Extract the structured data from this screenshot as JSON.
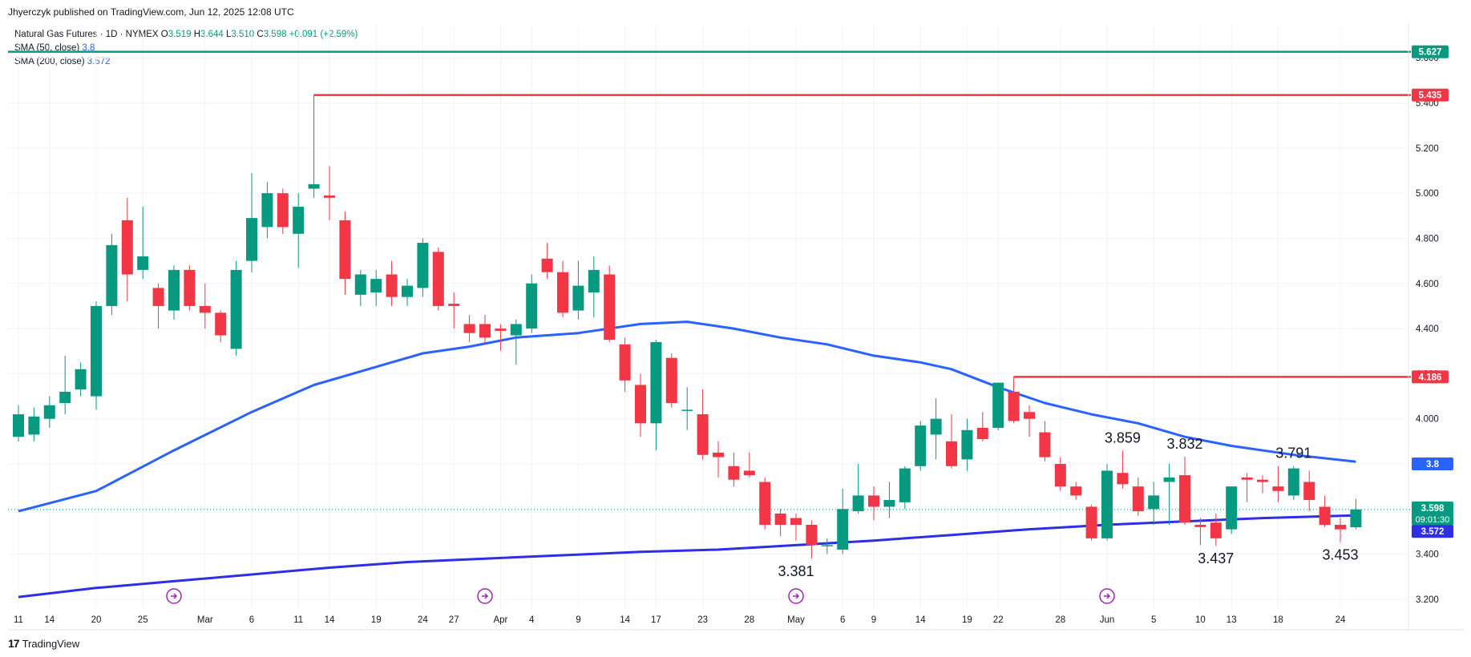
{
  "header": {
    "publisher": "Jhyerczyk published on TradingView.com, Jun 12, 2025 12:08 UTC"
  },
  "legend": {
    "title": "Natural Gas Futures · 1D · NYMEX",
    "o_label": "O",
    "o_value": "3.519",
    "h_label": "H",
    "h_value": "3.644",
    "l_label": "L",
    "l_value": "3.510",
    "c_label": "C",
    "c_value": "3.598",
    "change": "+0.091 (+2.59%)",
    "sma50_label": "SMA (50, close)",
    "sma50_value": "3.8",
    "sma200_label": "SMA (200, close)",
    "sma200_value": "3.572"
  },
  "footer": {
    "logo_text": "TradingView"
  },
  "colors": {
    "up": "#089981",
    "down": "#f23645",
    "sma": "#2962ff",
    "sma200": "#2e2ee6",
    "resistance": "#f23645",
    "top_line": "#089981",
    "grid": "#f0f3fa",
    "axis_text": "#131722"
  },
  "chart_data": {
    "type": "candlestick",
    "ylim": [
      3.15,
      5.75
    ],
    "y_ticks": [
      "3.200",
      "3.400",
      "3.600",
      "3.800",
      "4.000",
      "4.200",
      "4.400",
      "4.600",
      "4.800",
      "5.000",
      "5.200",
      "5.400",
      "5.600"
    ],
    "x_ticks": [
      "11",
      "14",
      "20",
      "25",
      "Mar",
      "6",
      "11",
      "14",
      "19",
      "24",
      "27",
      "Apr",
      "4",
      "9",
      "14",
      "17",
      "23",
      "28",
      "May",
      "6",
      "9",
      "14",
      "19",
      "22",
      "28",
      "Jun",
      "5",
      "10",
      "13",
      "18",
      "24"
    ],
    "x_tick_index": [
      0,
      2,
      5,
      8,
      12,
      15,
      18,
      20,
      23,
      26,
      28,
      31,
      33,
      36,
      39,
      41,
      44,
      47,
      50,
      53,
      55,
      58,
      61,
      63,
      67,
      70,
      73,
      76,
      78,
      81,
      85
    ],
    "candles": [
      {
        "o": 3.92,
        "h": 4.06,
        "l": 3.9,
        "c": 4.02
      },
      {
        "o": 3.93,
        "h": 4.05,
        "l": 3.9,
        "c": 4.01
      },
      {
        "o": 4.0,
        "h": 4.1,
        "l": 3.96,
        "c": 4.06
      },
      {
        "o": 4.07,
        "h": 4.28,
        "l": 4.02,
        "c": 4.12
      },
      {
        "o": 4.13,
        "h": 4.25,
        "l": 4.1,
        "c": 4.22
      },
      {
        "o": 4.1,
        "h": 4.52,
        "l": 4.04,
        "c": 4.5
      },
      {
        "o": 4.5,
        "h": 4.82,
        "l": 4.46,
        "c": 4.77
      },
      {
        "o": 4.88,
        "h": 4.98,
        "l": 4.52,
        "c": 4.64
      },
      {
        "o": 4.66,
        "h": 4.94,
        "l": 4.62,
        "c": 4.72
      },
      {
        "o": 4.58,
        "h": 4.6,
        "l": 4.4,
        "c": 4.5
      },
      {
        "o": 4.48,
        "h": 4.68,
        "l": 4.44,
        "c": 4.66
      },
      {
        "o": 4.66,
        "h": 4.68,
        "l": 4.48,
        "c": 4.5
      },
      {
        "o": 4.5,
        "h": 4.6,
        "l": 4.4,
        "c": 4.47
      },
      {
        "o": 4.47,
        "h": 4.48,
        "l": 4.34,
        "c": 4.37
      },
      {
        "o": 4.31,
        "h": 4.7,
        "l": 4.28,
        "c": 4.66
      },
      {
        "o": 4.7,
        "h": 5.09,
        "l": 4.65,
        "c": 4.89
      },
      {
        "o": 4.85,
        "h": 5.05,
        "l": 4.8,
        "c": 5.0
      },
      {
        "o": 5.0,
        "h": 5.02,
        "l": 4.82,
        "c": 4.85
      },
      {
        "o": 4.82,
        "h": 5.0,
        "l": 4.67,
        "c": 4.94
      },
      {
        "o": 5.02,
        "h": 5.435,
        "l": 4.98,
        "c": 5.04
      },
      {
        "o": 4.99,
        "h": 5.12,
        "l": 4.88,
        "c": 4.98
      },
      {
        "o": 4.88,
        "h": 4.92,
        "l": 4.55,
        "c": 4.62
      },
      {
        "o": 4.55,
        "h": 4.66,
        "l": 4.5,
        "c": 4.64
      },
      {
        "o": 4.56,
        "h": 4.66,
        "l": 4.5,
        "c": 4.62
      },
      {
        "o": 4.64,
        "h": 4.7,
        "l": 4.5,
        "c": 4.54
      },
      {
        "o": 4.54,
        "h": 4.62,
        "l": 4.5,
        "c": 4.59
      },
      {
        "o": 4.58,
        "h": 4.8,
        "l": 4.54,
        "c": 4.78
      },
      {
        "o": 4.74,
        "h": 4.76,
        "l": 4.48,
        "c": 4.5
      },
      {
        "o": 4.51,
        "h": 4.56,
        "l": 4.4,
        "c": 4.5
      },
      {
        "o": 4.42,
        "h": 4.46,
        "l": 4.34,
        "c": 4.38
      },
      {
        "o": 4.42,
        "h": 4.46,
        "l": 4.33,
        "c": 4.36
      },
      {
        "o": 4.4,
        "h": 4.42,
        "l": 4.3,
        "c": 4.39
      },
      {
        "o": 4.37,
        "h": 4.44,
        "l": 4.24,
        "c": 4.42
      },
      {
        "o": 4.4,
        "h": 4.64,
        "l": 4.38,
        "c": 4.6
      },
      {
        "o": 4.71,
        "h": 4.78,
        "l": 4.62,
        "c": 4.65
      },
      {
        "o": 4.65,
        "h": 4.7,
        "l": 4.45,
        "c": 4.47
      },
      {
        "o": 4.48,
        "h": 4.7,
        "l": 4.44,
        "c": 4.59
      },
      {
        "o": 4.56,
        "h": 4.72,
        "l": 4.45,
        "c": 4.66
      },
      {
        "o": 4.64,
        "h": 4.68,
        "l": 4.34,
        "c": 4.35
      },
      {
        "o": 4.33,
        "h": 4.36,
        "l": 4.12,
        "c": 4.17
      },
      {
        "o": 4.15,
        "h": 4.2,
        "l": 3.92,
        "c": 3.98
      },
      {
        "o": 3.98,
        "h": 4.35,
        "l": 3.86,
        "c": 4.34
      },
      {
        "o": 4.27,
        "h": 4.29,
        "l": 4.05,
        "c": 4.07
      },
      {
        "o": 4.04,
        "h": 4.14,
        "l": 3.95,
        "c": 4.04
      },
      {
        "o": 4.02,
        "h": 4.13,
        "l": 3.82,
        "c": 3.84
      },
      {
        "o": 3.85,
        "h": 3.9,
        "l": 3.74,
        "c": 3.83
      },
      {
        "o": 3.79,
        "h": 3.85,
        "l": 3.7,
        "c": 3.73
      },
      {
        "o": 3.77,
        "h": 3.85,
        "l": 3.74,
        "c": 3.75
      },
      {
        "o": 3.72,
        "h": 3.74,
        "l": 3.51,
        "c": 3.53
      },
      {
        "o": 3.58,
        "h": 3.6,
        "l": 3.48,
        "c": 3.53
      },
      {
        "o": 3.56,
        "h": 3.58,
        "l": 3.46,
        "c": 3.53
      },
      {
        "o": 3.53,
        "h": 3.55,
        "l": 3.381,
        "c": 3.44
      },
      {
        "o": 3.44,
        "h": 3.47,
        "l": 3.4,
        "c": 3.44
      },
      {
        "o": 3.42,
        "h": 3.69,
        "l": 3.4,
        "c": 3.6
      },
      {
        "o": 3.59,
        "h": 3.8,
        "l": 3.58,
        "c": 3.66
      },
      {
        "o": 3.66,
        "h": 3.7,
        "l": 3.55,
        "c": 3.61
      },
      {
        "o": 3.61,
        "h": 3.72,
        "l": 3.56,
        "c": 3.64
      },
      {
        "o": 3.63,
        "h": 3.79,
        "l": 3.6,
        "c": 3.78
      },
      {
        "o": 3.79,
        "h": 3.99,
        "l": 3.77,
        "c": 3.97
      },
      {
        "o": 3.93,
        "h": 4.09,
        "l": 3.82,
        "c": 4.0
      },
      {
        "o": 3.9,
        "h": 4.02,
        "l": 3.78,
        "c": 3.79
      },
      {
        "o": 3.82,
        "h": 4.0,
        "l": 3.77,
        "c": 3.95
      },
      {
        "o": 3.96,
        "h": 4.03,
        "l": 3.9,
        "c": 3.91
      },
      {
        "o": 3.96,
        "h": 4.16,
        "l": 3.95,
        "c": 4.16
      },
      {
        "o": 4.12,
        "h": 4.186,
        "l": 3.98,
        "c": 3.99
      },
      {
        "o": 4.03,
        "h": 4.06,
        "l": 3.92,
        "c": 4.0
      },
      {
        "o": 3.94,
        "h": 3.99,
        "l": 3.81,
        "c": 3.83
      },
      {
        "o": 3.8,
        "h": 3.83,
        "l": 3.68,
        "c": 3.7
      },
      {
        "o": 3.7,
        "h": 3.72,
        "l": 3.64,
        "c": 3.66
      },
      {
        "o": 3.61,
        "h": 3.62,
        "l": 3.46,
        "c": 3.47
      },
      {
        "o": 3.47,
        "h": 3.8,
        "l": 3.46,
        "c": 3.77
      },
      {
        "o": 3.76,
        "h": 3.859,
        "l": 3.69,
        "c": 3.71
      },
      {
        "o": 3.7,
        "h": 3.74,
        "l": 3.57,
        "c": 3.59
      },
      {
        "o": 3.6,
        "h": 3.72,
        "l": 3.53,
        "c": 3.66
      },
      {
        "o": 3.72,
        "h": 3.8,
        "l": 3.53,
        "c": 3.74
      },
      {
        "o": 3.75,
        "h": 3.832,
        "l": 3.53,
        "c": 3.54
      },
      {
        "o": 3.53,
        "h": 3.56,
        "l": 3.44,
        "c": 3.52
      },
      {
        "o": 3.54,
        "h": 3.58,
        "l": 3.437,
        "c": 3.47
      },
      {
        "o": 3.51,
        "h": 3.7,
        "l": 3.49,
        "c": 3.7
      },
      {
        "o": 3.74,
        "h": 3.76,
        "l": 3.63,
        "c": 3.73
      },
      {
        "o": 3.73,
        "h": 3.75,
        "l": 3.67,
        "c": 3.72
      },
      {
        "o": 3.7,
        "h": 3.79,
        "l": 3.63,
        "c": 3.68
      },
      {
        "o": 3.66,
        "h": 3.791,
        "l": 3.64,
        "c": 3.78
      },
      {
        "o": 3.72,
        "h": 3.77,
        "l": 3.59,
        "c": 3.64
      },
      {
        "o": 3.61,
        "h": 3.66,
        "l": 3.52,
        "c": 3.53
      },
      {
        "o": 3.53,
        "h": 3.56,
        "l": 3.453,
        "c": 3.51
      },
      {
        "o": 3.519,
        "h": 3.644,
        "l": 3.51,
        "c": 3.598
      }
    ],
    "sma50": [
      [
        0,
        3.59
      ],
      [
        5,
        3.68
      ],
      [
        10,
        3.86
      ],
      [
        15,
        4.03
      ],
      [
        19,
        4.15
      ],
      [
        22,
        4.21
      ],
      [
        26,
        4.29
      ],
      [
        29,
        4.32
      ],
      [
        32,
        4.36
      ],
      [
        36,
        4.38
      ],
      [
        40,
        4.42
      ],
      [
        43,
        4.43
      ],
      [
        46,
        4.4
      ],
      [
        49,
        4.36
      ],
      [
        52,
        4.33
      ],
      [
        55,
        4.28
      ],
      [
        58,
        4.25
      ],
      [
        60,
        4.22
      ],
      [
        63,
        4.14
      ],
      [
        66,
        4.07
      ],
      [
        69,
        4.02
      ],
      [
        72,
        3.98
      ],
      [
        75,
        3.92
      ],
      [
        78,
        3.88
      ],
      [
        82,
        3.84
      ],
      [
        86,
        3.81
      ]
    ],
    "sma200": [
      [
        0,
        3.21
      ],
      [
        5,
        3.25
      ],
      [
        10,
        3.28
      ],
      [
        15,
        3.31
      ],
      [
        20,
        3.34
      ],
      [
        25,
        3.365
      ],
      [
        30,
        3.38
      ],
      [
        35,
        3.395
      ],
      [
        40,
        3.41
      ],
      [
        45,
        3.42
      ],
      [
        50,
        3.44
      ],
      [
        55,
        3.46
      ],
      [
        60,
        3.485
      ],
      [
        65,
        3.51
      ],
      [
        70,
        3.53
      ],
      [
        75,
        3.545
      ],
      [
        80,
        3.56
      ],
      [
        86,
        3.572
      ]
    ],
    "horizontal_levels": [
      {
        "value": 5.627,
        "label": "5.627",
        "kind": "top",
        "from_index": 0
      },
      {
        "value": 5.435,
        "label": "5.435",
        "kind": "resistance",
        "from_index": 19
      },
      {
        "value": 4.186,
        "label": "4.186",
        "kind": "resistance",
        "from_index": 64
      }
    ],
    "price_badges": [
      {
        "value": 3.8,
        "label": "3.8",
        "kind": "sma50"
      },
      {
        "value": 3.598,
        "label": "3.598",
        "sub": "09:01:30",
        "kind": "last"
      },
      {
        "value": 3.572,
        "label": "3.572",
        "kind": "sma200"
      }
    ],
    "annotations": [
      {
        "index": 50,
        "value": 3.381,
        "text": "3.381",
        "pos": "below"
      },
      {
        "index": 71,
        "value": 3.859,
        "text": "3.859",
        "pos": "above"
      },
      {
        "index": 75,
        "value": 3.832,
        "text": "3.832",
        "pos": "above"
      },
      {
        "index": 77,
        "value": 3.437,
        "text": "3.437",
        "pos": "below"
      },
      {
        "index": 82,
        "value": 3.791,
        "text": "3.791",
        "pos": "above"
      },
      {
        "index": 85,
        "value": 3.453,
        "text": "3.453",
        "pos": "below"
      }
    ],
    "event_markers_index": [
      10,
      30,
      50,
      70
    ]
  }
}
